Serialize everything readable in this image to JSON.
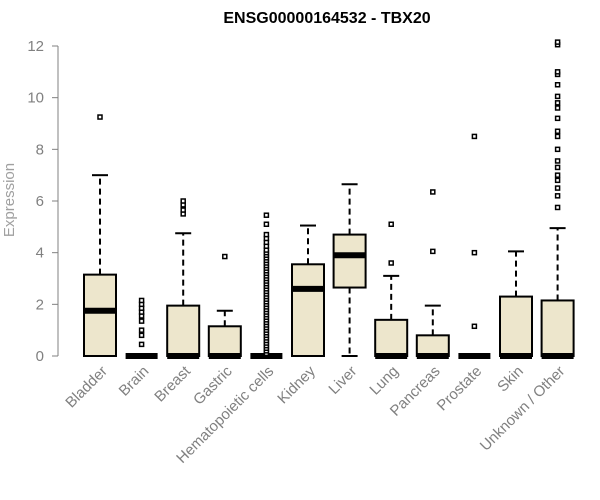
{
  "chart_data": {
    "type": "box",
    "title": "ENSG00000164532 - TBX20",
    "xlabel": "",
    "ylabel": "Expression",
    "ylim": [
      0,
      12
    ],
    "yticks": [
      0,
      2,
      4,
      6,
      8,
      10,
      12
    ],
    "grid": false,
    "legend": "none",
    "box_fill": "#ede6cc",
    "box_stroke": "#000000",
    "median_color": "#000000",
    "axis_color": "#808080",
    "categories": [
      "Bladder",
      "Brain",
      "Breast",
      "Gastric",
      "Hematopoietic cells",
      "Kidney",
      "Liver",
      "Lung",
      "Pancreas",
      "Prostate",
      "Skin",
      "Unknown / Other"
    ],
    "boxes": [
      {
        "q1": 0.0,
        "median": 1.75,
        "q3": 3.15,
        "whisker_low": 0.0,
        "whisker_high": 7.0,
        "outliers": [
          9.25
        ]
      },
      {
        "q1": 0.0,
        "median": 0.0,
        "q3": 0.0,
        "whisker_low": 0.0,
        "whisker_high": 0.0,
        "outliers": [
          0.45,
          0.8,
          1.0,
          1.35,
          1.55,
          1.7,
          1.85,
          2.0,
          2.15
        ]
      },
      {
        "q1": 0.0,
        "median": 0.0,
        "q3": 1.95,
        "whisker_low": 0.0,
        "whisker_high": 4.75,
        "outliers": [
          5.5,
          5.65,
          5.85,
          6.0
        ]
      },
      {
        "q1": 0.0,
        "median": 0.0,
        "q3": 1.15,
        "whisker_low": 0.0,
        "whisker_high": 1.75,
        "outliers": [
          3.85
        ]
      },
      {
        "q1": 0.0,
        "median": 0.0,
        "q3": 0.0,
        "whisker_low": 0.0,
        "whisker_high": 0.0,
        "outliers": [
          0.1,
          0.2,
          0.3,
          0.4,
          0.5,
          0.6,
          0.7,
          0.8,
          0.9,
          1.0,
          1.1,
          1.2,
          1.3,
          1.4,
          1.5,
          1.6,
          1.7,
          1.8,
          1.9,
          2.0,
          2.1,
          2.2,
          2.3,
          2.4,
          2.5,
          2.6,
          2.7,
          2.8,
          2.9,
          3.0,
          3.1,
          3.2,
          3.3,
          3.4,
          3.5,
          3.6,
          3.7,
          3.8,
          3.9,
          4.0,
          4.1,
          4.25,
          4.4,
          4.55,
          4.7,
          5.1,
          5.45
        ]
      },
      {
        "q1": 0.0,
        "median": 2.6,
        "q3": 3.55,
        "whisker_low": 0.0,
        "whisker_high": 5.05,
        "outliers": []
      },
      {
        "q1": 2.65,
        "median": 3.9,
        "q3": 4.7,
        "whisker_low": 0.0,
        "whisker_high": 6.65,
        "outliers": []
      },
      {
        "q1": 0.0,
        "median": 0.0,
        "q3": 1.4,
        "whisker_low": 0.0,
        "whisker_high": 3.1,
        "outliers": [
          3.6,
          5.1
        ]
      },
      {
        "q1": 0.0,
        "median": 0.0,
        "q3": 0.8,
        "whisker_low": 0.0,
        "whisker_high": 1.95,
        "outliers": [
          4.05,
          6.35
        ]
      },
      {
        "q1": 0.0,
        "median": 0.0,
        "q3": 0.0,
        "whisker_low": 0.0,
        "whisker_high": 0.0,
        "outliers": [
          1.15,
          4.0,
          8.5
        ]
      },
      {
        "q1": 0.0,
        "median": 0.0,
        "q3": 2.3,
        "whisker_low": 0.0,
        "whisker_high": 4.05,
        "outliers": []
      },
      {
        "q1": 0.0,
        "median": 0.0,
        "q3": 2.15,
        "whisker_low": 0.0,
        "whisker_high": 4.95,
        "outliers": [
          5.75,
          6.2,
          6.5,
          6.8,
          7.0,
          7.3,
          7.55,
          8.0,
          8.5,
          8.7,
          9.2,
          9.6,
          9.8,
          10.05,
          10.5,
          10.9,
          11.0,
          12.05,
          12.15
        ]
      }
    ]
  }
}
